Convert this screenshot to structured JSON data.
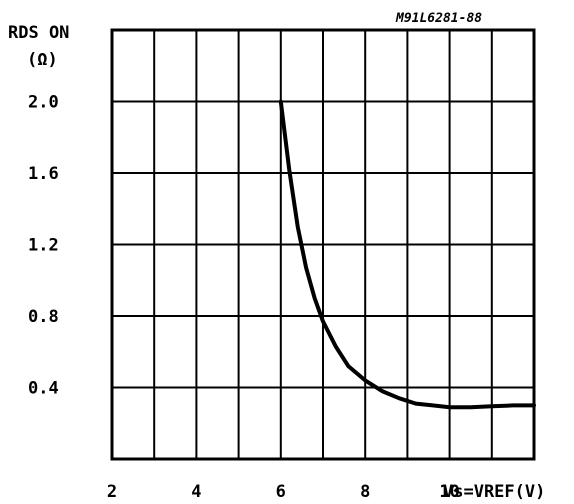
{
  "chart_data": {
    "type": "line",
    "figure_code": "M91L6281-88",
    "ylabel_line1": "RDS ON",
    "ylabel_line2": "(Ω)",
    "xlabel": "Vs=VREF(V)",
    "xlim": [
      2,
      12
    ],
    "ylim": [
      0,
      2.4
    ],
    "x_ticks": [
      2,
      4,
      6,
      8,
      10
    ],
    "x_tick_labels": [
      "2",
      "4",
      "6",
      "8",
      "10"
    ],
    "y_ticks": [
      0.4,
      0.8,
      1.2,
      1.6,
      2.0
    ],
    "y_tick_labels": [
      "0.4",
      "0.8",
      "1.2",
      "1.6",
      "2.0"
    ],
    "grid": true,
    "series": [
      {
        "x": [
          6.0,
          6.2,
          6.4,
          6.6,
          6.8,
          7.0,
          7.3,
          7.6,
          8.0,
          8.4,
          8.8,
          9.2,
          9.6,
          10.0,
          10.5,
          11.0,
          11.5,
          12.0
        ],
        "y": [
          2.0,
          1.62,
          1.3,
          1.07,
          0.9,
          0.77,
          0.63,
          0.52,
          0.44,
          0.38,
          0.34,
          0.31,
          0.3,
          0.29,
          0.29,
          0.295,
          0.3,
          0.3
        ]
      }
    ]
  }
}
